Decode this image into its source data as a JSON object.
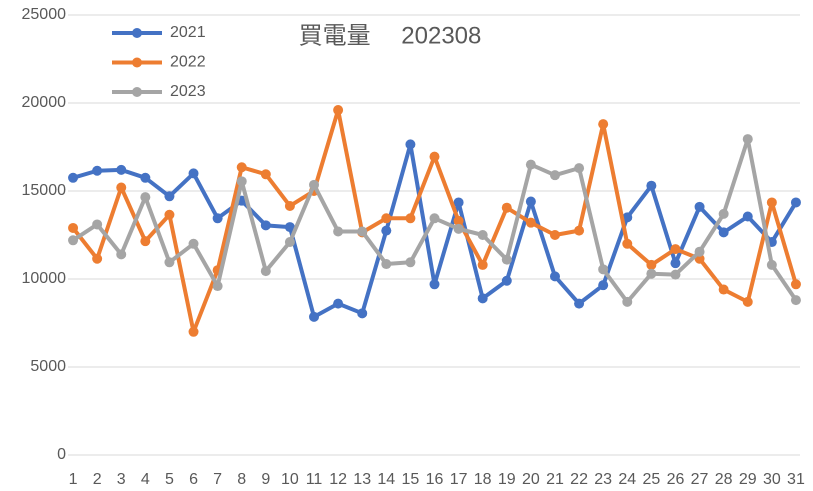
{
  "chart_data": {
    "type": "line",
    "title": "買電量　 202308",
    "categories": [
      "1",
      "2",
      "3",
      "4",
      "5",
      "6",
      "7",
      "8",
      "9",
      "10",
      "11",
      "12",
      "13",
      "14",
      "15",
      "16",
      "17",
      "18",
      "19",
      "20",
      "21",
      "22",
      "23",
      "24",
      "25",
      "26",
      "27",
      "28",
      "29",
      "30",
      "31"
    ],
    "series": [
      {
        "name": "2021",
        "color": "#4472c4",
        "values": [
          15750,
          16150,
          16200,
          15750,
          14700,
          16000,
          13450,
          14450,
          13050,
          12950,
          7850,
          8600,
          8050,
          12750,
          17650,
          9700,
          14350,
          8900,
          9900,
          14400,
          10150,
          8600,
          9650,
          13500,
          15300,
          10900,
          14100,
          12650,
          13550,
          12100,
          14350
        ]
      },
      {
        "name": "2022",
        "color": "#ed7d31",
        "values": [
          12900,
          11150,
          15200,
          12150,
          13650,
          7000,
          10500,
          16350,
          15950,
          14150,
          15000,
          19600,
          12650,
          13450,
          13450,
          16950,
          13300,
          10800,
          14050,
          13200,
          12500,
          12750,
          18800,
          12000,
          10800,
          11700,
          11150,
          9400,
          8700,
          14350,
          9700
        ]
      },
      {
        "name": "2023",
        "color": "#a5a5a5",
        "values": [
          12200,
          13100,
          11400,
          14650,
          10950,
          12000,
          9600,
          15550,
          10450,
          12100,
          15350,
          12700,
          12700,
          10850,
          10950,
          13450,
          12850,
          12500,
          11100,
          16500,
          15900,
          16300,
          10550,
          8700,
          10300,
          10250,
          11550,
          13700,
          17950,
          10800,
          8800
        ]
      }
    ],
    "ylim": [
      0,
      25000
    ],
    "yticks": [
      0,
      5000,
      10000,
      15000,
      20000,
      25000
    ],
    "grid": true,
    "legend": "top-left"
  }
}
